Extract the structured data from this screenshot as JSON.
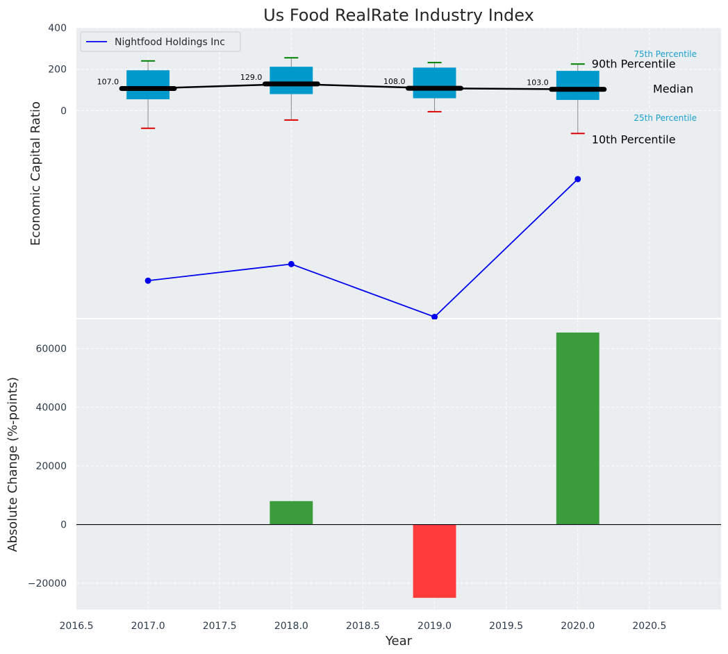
{
  "title": "Us Food RealRate Industry Index",
  "x_axis": {
    "label": "Year",
    "range": [
      2016.5,
      2021.0
    ],
    "ticks": [
      2016.5,
      2017.0,
      2017.5,
      2018.0,
      2018.5,
      2019.0,
      2019.5,
      2020.0,
      2020.5
    ],
    "tick_labels": [
      "2016.5",
      "2017.0",
      "2017.5",
      "2018.0",
      "2018.5",
      "2019.0",
      "2019.5",
      "2020.0",
      "2020.5"
    ]
  },
  "colors": {
    "panel_bg": "#eaeef0",
    "box": "#0099cc",
    "median": "#000000",
    "whisker_top": "#008000",
    "whisker_bottom": "#dd0000",
    "company_line": "#0000ee",
    "bar_positive": "#3b9c3b",
    "bar_negative": "#ff3c3c",
    "label_blue": "#1a9fd0"
  },
  "chart_data": [
    {
      "type": "box",
      "panel": "top",
      "ylabel": "Economic Capital Ratio",
      "ylim": [
        -1000,
        400
      ],
      "y_ticks": [
        0,
        200,
        400
      ],
      "y_tick_labels": [
        "0",
        "200",
        "400"
      ],
      "grid": true,
      "legend": {
        "placement": "top-left",
        "entries": [
          "Nightfood Holdings Inc"
        ]
      },
      "years": [
        2017,
        2018,
        2019,
        2020
      ],
      "boxes": [
        {
          "year": 2017,
          "p10": -85,
          "p25": 55,
          "median": 107,
          "p75": 195,
          "p90": 240,
          "median_label": "107.0"
        },
        {
          "year": 2018,
          "p10": -45,
          "p25": 80,
          "median": 129,
          "p75": 212,
          "p90": 255,
          "median_label": "129.0"
        },
        {
          "year": 2019,
          "p10": -5,
          "p25": 60,
          "median": 108,
          "p75": 208,
          "p90": 232,
          "median_label": "108.0"
        },
        {
          "year": 2020,
          "p10": -110,
          "p25": 52,
          "median": 103,
          "p75": 192,
          "p90": 225,
          "median_label": "103.0"
        }
      ],
      "percentile_labels": {
        "p90": "90th Percentile",
        "p75": "75th Percentile",
        "median": "Median",
        "p25": "25th Percentile",
        "p10": "10th Percentile"
      },
      "series": [
        {
          "name": "Nightfood Holdings Inc",
          "x": [
            2017,
            2018,
            2019,
            2020
          ],
          "y": [
            -820,
            -740,
            -995,
            -330
          ]
        }
      ]
    },
    {
      "type": "bar",
      "panel": "bottom",
      "ylabel": "Absolute Change (%-points)",
      "ylim": [
        -29000,
        70000
      ],
      "y_ticks": [
        -20000,
        0,
        20000,
        40000,
        60000
      ],
      "y_tick_labels": [
        "−20000",
        "0",
        "20000",
        "40000",
        "60000"
      ],
      "grid": true,
      "x": [
        2017,
        2018,
        2019,
        2020
      ],
      "values": [
        0,
        8000,
        -25000,
        65500
      ]
    }
  ]
}
